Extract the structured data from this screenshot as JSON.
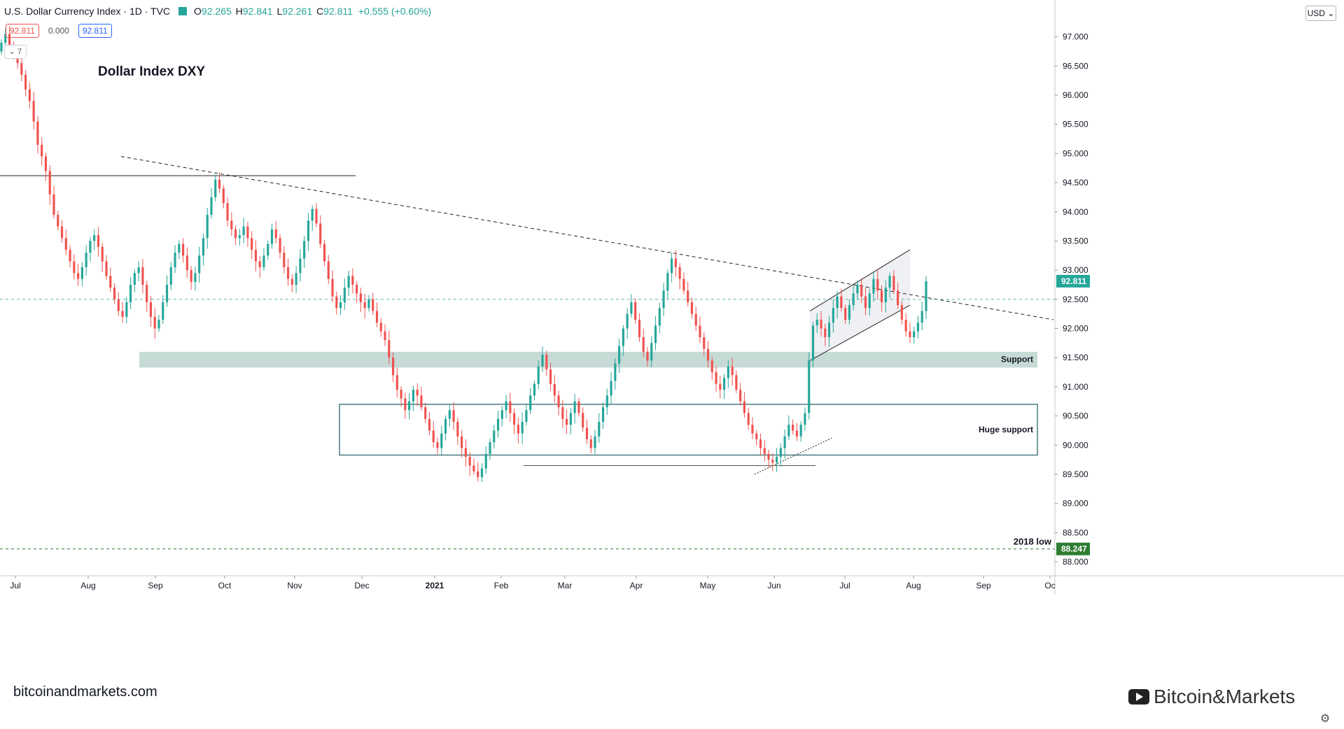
{
  "header": {
    "symbol": "U.S. Dollar Currency Index · 1D · TVC",
    "open_label": "O",
    "open": "92.265",
    "high_label": "H",
    "high": "92.841",
    "low_label": "L",
    "low": "92.261",
    "close_label": "C",
    "close": "92.811",
    "change": "+0.555 (+0.60%)"
  },
  "price_boxes": {
    "sell": "92.811",
    "spread": "0.000",
    "buy": "92.811"
  },
  "collapse_label": "⌄ 7",
  "currency_button": "USD ⌄",
  "watermark_left": "bitcoinandmarkets.com",
  "watermark_right": "Bitcoin&Markets",
  "colors": {
    "up": "#26a69a",
    "down": "#ef5350",
    "support_fill": "#bcd4cf",
    "box_stroke": "#4a7a80",
    "last_price": "#26a69a"
  },
  "chart_data": {
    "type": "candlestick",
    "title": "Dollar Index DXY",
    "ylim": [
      88.0,
      97.5
    ],
    "y_ticks": [
      "97.000",
      "96.500",
      "96.000",
      "95.500",
      "95.000",
      "94.500",
      "94.000",
      "93.500",
      "93.000",
      "92.500",
      "92.000",
      "91.500",
      "91.000",
      "90.500",
      "90.000",
      "89.500",
      "89.000",
      "88.500",
      "88.000"
    ],
    "x_ticks": [
      "Jul",
      "Aug",
      "Sep",
      "Oct",
      "Nov",
      "Dec",
      "2021",
      "Feb",
      "Mar",
      "Apr",
      "May",
      "Jun",
      "Jul",
      "Aug",
      "Sep",
      "Oc"
    ],
    "last_price": "92.811",
    "level_2018_low": "88.247",
    "annotations": {
      "support": "Support",
      "huge_support": "Huge support",
      "low_2018": "2018 low"
    },
    "support_zone": [
      91.33,
      91.6
    ],
    "huge_support_zone": [
      89.83,
      90.7
    ],
    "horizontal_resistance": 94.62,
    "dashed_close_line": 92.5,
    "closes": [
      96.9,
      97.05,
      96.85,
      96.7,
      96.55,
      96.35,
      96.1,
      95.9,
      95.55,
      95.15,
      94.95,
      94.7,
      94.3,
      93.95,
      93.75,
      93.55,
      93.35,
      93.15,
      92.95,
      92.85,
      93.05,
      93.3,
      93.5,
      93.6,
      93.4,
      93.15,
      92.9,
      92.7,
      92.5,
      92.3,
      92.2,
      92.45,
      92.75,
      92.95,
      93.05,
      92.75,
      92.45,
      92.2,
      92.0,
      92.15,
      92.45,
      92.75,
      93.05,
      93.3,
      93.45,
      93.25,
      93.0,
      92.8,
      92.95,
      93.25,
      93.55,
      93.95,
      94.25,
      94.55,
      94.4,
      94.15,
      93.85,
      93.7,
      93.55,
      93.6,
      93.75,
      93.55,
      93.35,
      93.15,
      93.05,
      93.25,
      93.45,
      93.7,
      93.55,
      93.3,
      93.05,
      92.85,
      92.75,
      92.95,
      93.2,
      93.5,
      93.85,
      94.05,
      93.8,
      93.45,
      93.15,
      92.85,
      92.55,
      92.35,
      92.45,
      92.7,
      92.9,
      92.75,
      92.6,
      92.45,
      92.35,
      92.5,
      92.3,
      92.1,
      91.95,
      91.8,
      91.5,
      91.2,
      90.95,
      90.8,
      90.6,
      90.75,
      90.95,
      90.85,
      90.65,
      90.45,
      90.25,
      90.05,
      89.95,
      90.2,
      90.45,
      90.6,
      90.4,
      90.15,
      89.95,
      89.8,
      89.65,
      89.55,
      89.45,
      89.6,
      89.85,
      90.05,
      90.25,
      90.45,
      90.6,
      90.75,
      90.55,
      90.35,
      90.2,
      90.4,
      90.6,
      90.85,
      91.05,
      91.35,
      91.55,
      91.3,
      91.05,
      90.85,
      90.65,
      90.45,
      90.35,
      90.55,
      90.75,
      90.55,
      90.3,
      90.1,
      89.95,
      90.15,
      90.4,
      90.65,
      90.85,
      91.1,
      91.4,
      91.7,
      92.0,
      92.25,
      92.45,
      92.15,
      91.85,
      91.6,
      91.45,
      91.75,
      92.05,
      92.35,
      92.65,
      92.95,
      93.2,
      93.05,
      92.85,
      92.65,
      92.45,
      92.25,
      92.05,
      91.85,
      91.65,
      91.45,
      91.25,
      91.05,
      90.95,
      91.15,
      91.35,
      91.2,
      90.95,
      90.75,
      90.55,
      90.35,
      90.2,
      90.1,
      89.95,
      89.85,
      89.75,
      89.7,
      89.8,
      89.95,
      90.15,
      90.35,
      90.25,
      90.15,
      90.35,
      90.55,
      91.45,
      92.05,
      92.15,
      92.0,
      91.85,
      92.1,
      92.35,
      92.55,
      92.35,
      92.15,
      92.4,
      92.6,
      92.75,
      92.55,
      92.35,
      92.6,
      92.85,
      92.65,
      92.45,
      92.7,
      92.9,
      92.65,
      92.4,
      92.15,
      91.95,
      91.85,
      91.95,
      92.1,
      92.3,
      92.81
    ]
  }
}
